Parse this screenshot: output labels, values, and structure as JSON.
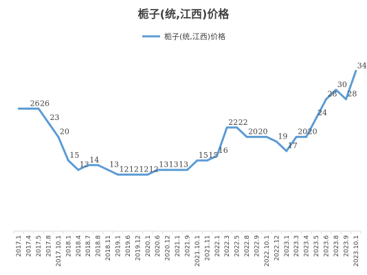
{
  "chart_data": {
    "type": "line",
    "title": "栀子(统,江西)价格",
    "legend": {
      "position": "top",
      "entries": [
        "栀子(统,江西)价格"
      ]
    },
    "series": [
      {
        "name": "栀子(统,江西)价格",
        "color": "#5b9bd5",
        "values": [
          26,
          26,
          26,
          23,
          20,
          15,
          13,
          14,
          14,
          13,
          12,
          12,
          12,
          12,
          13,
          13,
          13,
          13,
          15,
          15,
          16,
          22,
          22,
          20,
          20,
          20,
          19,
          17,
          20,
          20,
          24,
          28,
          30,
          28,
          34
        ],
        "labels": [
          "",
          "26",
          "26",
          "23",
          "20",
          "15",
          "13",
          "14",
          "",
          "13",
          "12",
          "12",
          "12",
          "12",
          "13",
          "13",
          "13",
          "",
          "15",
          "15",
          "16",
          "22",
          "22",
          "20",
          "20",
          "",
          "19",
          "17",
          "20",
          "20",
          "24",
          "28",
          "30",
          "28",
          "34"
        ]
      }
    ],
    "categories": [
      "2017.1",
      "2017.4",
      "2017.5",
      "2017.8",
      "2017.10.1",
      "2018.1",
      "2018.4",
      "2018.7",
      "2018.8",
      "2018.11",
      "2019.1",
      "2019.6",
      "2019.12",
      "2020.1",
      "2020.6",
      "2020.12",
      "2021.1",
      "2021.9",
      "2021.10.1",
      "2021.11",
      "2022.1",
      "2022.3",
      "2022.5",
      "2022.8",
      "2022.9",
      "2022.10.1",
      "2022.12",
      "2023.1",
      "2023.3",
      "2023.4",
      "2023.5",
      "2023.6",
      "2023.8",
      "2023.9",
      "2023.10.1"
    ],
    "xlabel": "",
    "ylabel": "",
    "ylim": [
      0,
      38
    ],
    "grid": false,
    "y_axis_visible": false
  }
}
